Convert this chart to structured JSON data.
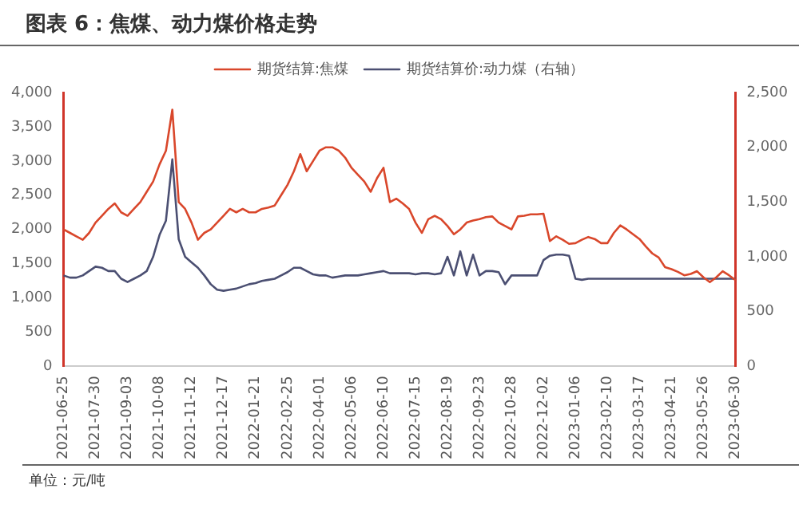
{
  "chart_data": {
    "type": "line",
    "title": "图表 6：焦煤、动力煤价格走势",
    "annotations": [
      "单位：元/吨"
    ],
    "categories": [
      "2021-06-25",
      null,
      null,
      null,
      null,
      "2021-07-30",
      null,
      null,
      null,
      null,
      "2021-09-03",
      null,
      null,
      null,
      null,
      "2021-10-08",
      null,
      null,
      null,
      null,
      "2021-11-12",
      null,
      null,
      null,
      null,
      "2021-12-17",
      null,
      null,
      null,
      null,
      "2022-01-21",
      null,
      null,
      null,
      null,
      "2022-02-25",
      null,
      null,
      null,
      null,
      "2022-04-01",
      null,
      null,
      null,
      null,
      "2022-05-06",
      null,
      null,
      null,
      null,
      "2022-06-10",
      null,
      null,
      null,
      null,
      "2022-07-15",
      null,
      null,
      null,
      null,
      "2022-08-19",
      null,
      null,
      null,
      null,
      "2022-09-23",
      null,
      null,
      null,
      null,
      "2022-10-28",
      null,
      null,
      null,
      null,
      "2022-12-02",
      null,
      null,
      null,
      null,
      "2023-01-06",
      null,
      null,
      null,
      null,
      "2023-02-10",
      null,
      null,
      null,
      null,
      "2023-03-17",
      null,
      null,
      null,
      null,
      "2023-04-21",
      null,
      null,
      null,
      null,
      "2023-05-26",
      null,
      null,
      null,
      null,
      "2023-06-30"
    ],
    "series": [
      {
        "name": "期货结算:焦煤",
        "color": "#d9472b",
        "values": [
          2000,
          1950,
          1900,
          1850,
          1950,
          2100,
          2200,
          2300,
          2380,
          2250,
          2200,
          2300,
          2400,
          2550,
          2700,
          2950,
          3150,
          3750,
          2400,
          2300,
          2100,
          1850,
          1950,
          2000,
          2100,
          2200,
          2300,
          2250,
          2300,
          2250,
          2250,
          2300,
          2320,
          2350,
          2500,
          2650,
          2850,
          3100,
          2850,
          3000,
          3150,
          3200,
          3200,
          3150,
          3050,
          2900,
          2800,
          2700,
          2550,
          2750,
          2900,
          2400,
          2450,
          2380,
          2300,
          2100,
          1950,
          2150,
          2200,
          2150,
          2050,
          1930,
          2000,
          2100,
          2130,
          2150,
          2180,
          2190,
          2100,
          2050,
          2000,
          2190,
          2200,
          2220,
          2220,
          2230,
          1830,
          1900,
          1850,
          1790,
          1800,
          1850,
          1890,
          1860,
          1800,
          1800,
          1950,
          2060,
          2000,
          1930,
          1860,
          1750,
          1650,
          1590,
          1450,
          1420,
          1380,
          1330,
          1350,
          1390,
          1300,
          1230,
          1300,
          1390,
          1330,
          1260
        ]
      },
      {
        "name": "期货结算价:动力煤（右轴）",
        "color": "#4b4f72",
        "axis": "y2",
        "values": [
          830,
          810,
          810,
          830,
          870,
          910,
          900,
          870,
          870,
          800,
          770,
          800,
          830,
          870,
          1000,
          1200,
          1330,
          1890,
          1160,
          1000,
          950,
          900,
          830,
          750,
          700,
          690,
          700,
          710,
          730,
          750,
          760,
          780,
          790,
          800,
          830,
          860,
          900,
          900,
          870,
          840,
          830,
          830,
          810,
          820,
          830,
          830,
          830,
          840,
          850,
          860,
          870,
          850,
          850,
          850,
          850,
          840,
          850,
          850,
          840,
          850,
          1000,
          830,
          1050,
          830,
          1020,
          830,
          870,
          870,
          860,
          750,
          830,
          830,
          830,
          830,
          830,
          970,
          1010,
          1020,
          1020,
          1010,
          800,
          790,
          800,
          800,
          800,
          800,
          800,
          800,
          800,
          800,
          800,
          800,
          800,
          800,
          800,
          800,
          800,
          800,
          800,
          800,
          800,
          800,
          800,
          800,
          800,
          800
        ]
      }
    ],
    "ylim": [
      0,
      4000
    ],
    "yticks": [
      {
        "value": 0,
        "label": "0"
      },
      {
        "value": 500,
        "label": "500"
      },
      {
        "value": 1000,
        "label": "1,000"
      },
      {
        "value": 1500,
        "label": "1,500"
      },
      {
        "value": 2000,
        "label": "2,000"
      },
      {
        "value": 2500,
        "label": "2,500"
      },
      {
        "value": 3000,
        "label": "3,000"
      },
      {
        "value": 3500,
        "label": "3,500"
      },
      {
        "value": 4000,
        "label": "4,000"
      }
    ],
    "y2lim": [
      0,
      2500
    ],
    "y2ticks": [
      {
        "value": 0,
        "label": "0"
      },
      {
        "value": 500,
        "label": "500"
      },
      {
        "value": 1000,
        "label": "1,000"
      },
      {
        "value": 1500,
        "label": "1,500"
      },
      {
        "value": 2000,
        "label": "2,000"
      },
      {
        "value": 2500,
        "label": "2,500"
      }
    ],
    "grid": false,
    "legend": "top",
    "marker": "none",
    "line_style": "solid"
  }
}
